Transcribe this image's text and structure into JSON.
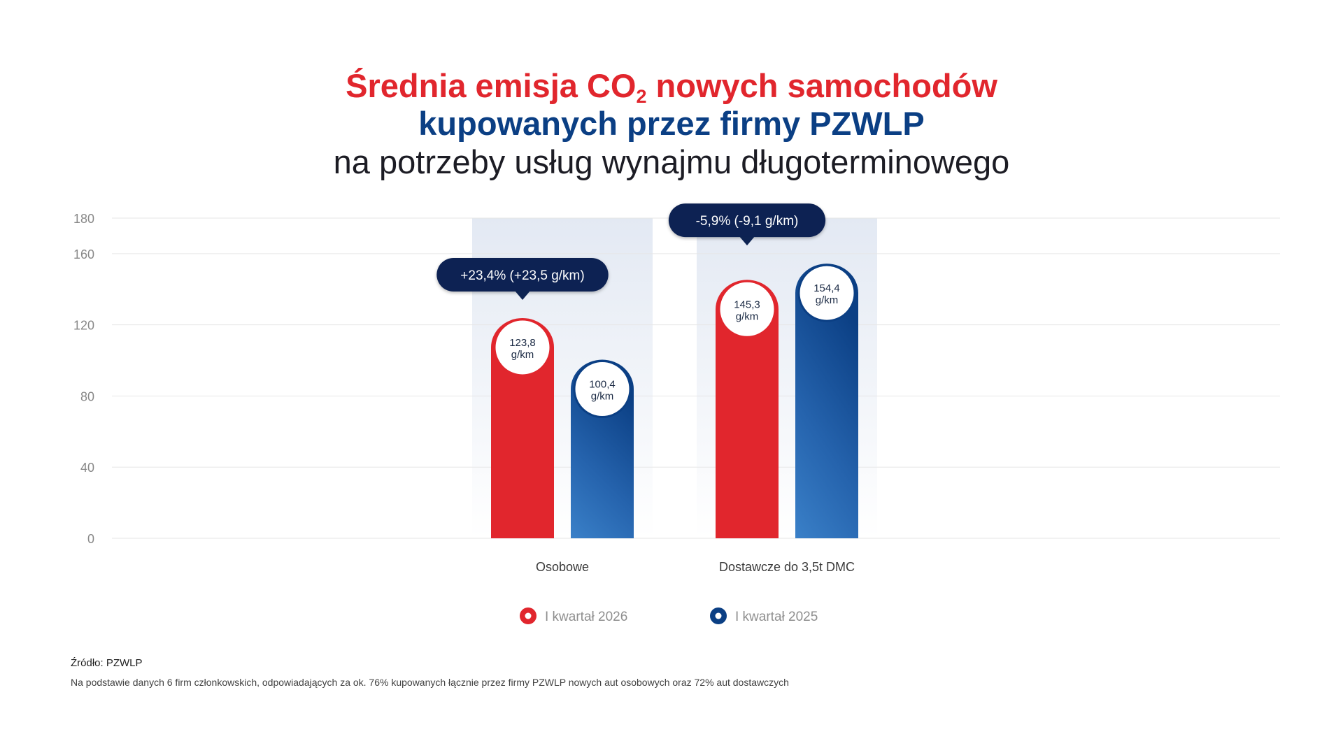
{
  "title": {
    "line1_prefix": "Średnia emisja CO",
    "line1_sub": "2",
    "line1_suffix": " nowych samochodów",
    "line2": "kupowanych przez firmy PZWLP",
    "line3": "na potrzeby usług wynajmu długoterminowego"
  },
  "colors": {
    "red": "#e1262d",
    "navy": "#0b3f84",
    "blue_light": "#3a80c8",
    "callout": "#0d2352",
    "axis_text": "#888888",
    "gridline": "#e6e6e6"
  },
  "chart_data": {
    "type": "bar",
    "categories": [
      "Osobowe",
      "Dostawcze do 3,5t DMC"
    ],
    "series": [
      {
        "name": "I kwartał 2026",
        "values": [
          123.8,
          145.3
        ],
        "labels": [
          "123,8",
          "145,3"
        ]
      },
      {
        "name": "I kwartał 2025",
        "values": [
          100.4,
          154.4
        ],
        "labels": [
          "100,4",
          "154,4"
        ]
      }
    ],
    "value_unit": "g/km",
    "ylim": [
      0,
      180
    ],
    "yticks": [
      0,
      40,
      80,
      120,
      160,
      180
    ],
    "grid": true,
    "legend_position": "bottom-center",
    "annotations": [
      "+23,4% (+23,5 g/km)",
      "-5,9% (-9,1 g/km)"
    ]
  },
  "footer": {
    "source": "Źródło: PZWLP",
    "note": "Na podstawie danych 6 firm członkowskich, odpowiadających za ok. 76% kupowanych łącznie przez firmy PZWLP nowych aut osobowych oraz 72% aut dostawczych"
  }
}
